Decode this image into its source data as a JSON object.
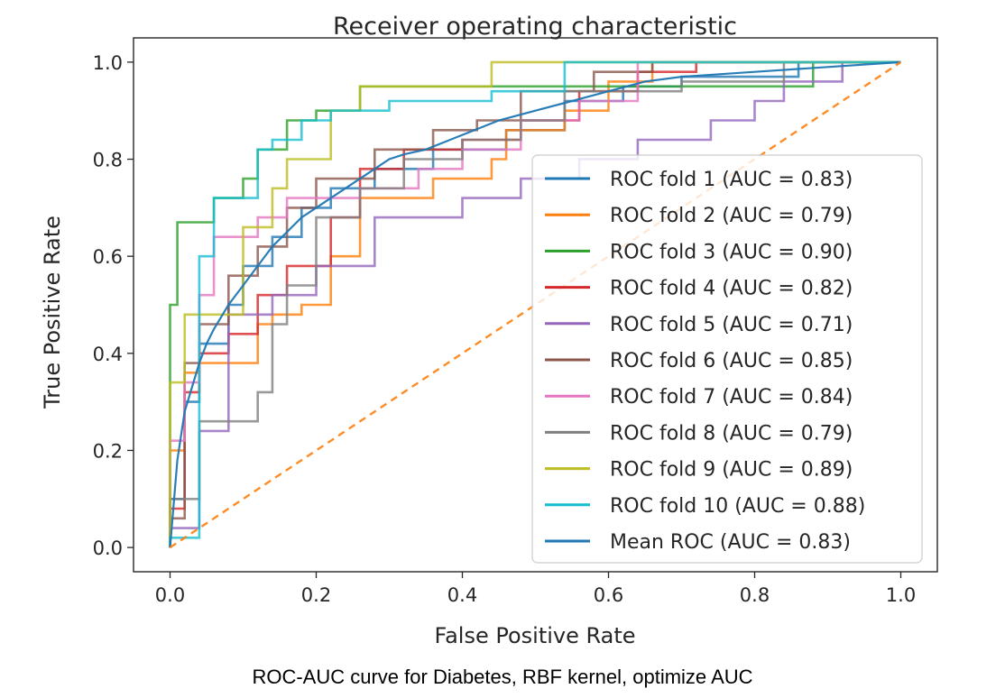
{
  "caption": "ROC-AUC curve for Diabetes, RBF kernel, optimize AUC",
  "chart_data": {
    "type": "line",
    "title": "Receiver operating characteristic",
    "xlabel": "False Positive Rate",
    "ylabel": "True Positive Rate",
    "xlim": [
      -0.05,
      1.05
    ],
    "ylim": [
      -0.05,
      1.05
    ],
    "xticks": [
      0.0,
      0.2,
      0.4,
      0.6,
      0.8,
      1.0
    ],
    "yticks": [
      0.0,
      0.2,
      0.4,
      0.6,
      0.8,
      1.0
    ],
    "tick_labels": [
      "0.0",
      "0.2",
      "0.4",
      "0.6",
      "0.8",
      "1.0"
    ],
    "grid": false,
    "legend_position": "lower-right",
    "chance_line": {
      "x": [
        0,
        1
      ],
      "y": [
        0,
        1
      ],
      "color": "#ff7f0e",
      "style": "dashed"
    },
    "series": [
      {
        "name": "ROC fold 1 (AUC = 0.83)",
        "color": "#1f77b4",
        "x": [
          0,
          0,
          0.02,
          0.02,
          0.04,
          0.04,
          0.08,
          0.08,
          0.1,
          0.1,
          0.14,
          0.14,
          0.18,
          0.18,
          0.22,
          0.22,
          0.28,
          0.28,
          0.36,
          0.36,
          0.46,
          0.46,
          0.54,
          0.54,
          0.62,
          0.62,
          0.7,
          0.7,
          0.86,
          0.86,
          1.0
        ],
        "y": [
          0,
          0.1,
          0.1,
          0.3,
          0.3,
          0.42,
          0.42,
          0.5,
          0.5,
          0.58,
          0.58,
          0.64,
          0.64,
          0.7,
          0.7,
          0.74,
          0.74,
          0.78,
          0.78,
          0.82,
          0.82,
          0.86,
          0.86,
          0.92,
          0.92,
          0.95,
          0.95,
          0.97,
          0.97,
          1.0,
          1.0
        ]
      },
      {
        "name": "ROC fold 2 (AUC = 0.79)",
        "color": "#ff7f0e",
        "x": [
          0,
          0,
          0.02,
          0.02,
          0.04,
          0.04,
          0.12,
          0.12,
          0.14,
          0.14,
          0.18,
          0.18,
          0.22,
          0.22,
          0.26,
          0.26,
          0.36,
          0.36,
          0.44,
          0.44,
          0.46,
          0.46,
          0.54,
          0.54,
          0.6,
          0.6,
          0.66,
          0.66,
          1.0
        ],
        "y": [
          0,
          0.2,
          0.2,
          0.36,
          0.36,
          0.38,
          0.38,
          0.46,
          0.46,
          0.48,
          0.48,
          0.5,
          0.5,
          0.6,
          0.6,
          0.72,
          0.72,
          0.76,
          0.76,
          0.8,
          0.8,
          0.86,
          0.86,
          0.9,
          0.9,
          0.96,
          0.96,
          1.0,
          1.0
        ]
      },
      {
        "name": "ROC fold 3 (AUC = 0.90)",
        "color": "#2ca02c",
        "x": [
          0,
          0,
          0.01,
          0.01,
          0.02,
          0.02,
          0.06,
          0.06,
          0.1,
          0.1,
          0.12,
          0.12,
          0.16,
          0.16,
          0.2,
          0.2,
          0.26,
          0.26,
          0.88,
          0.88,
          1.0
        ],
        "y": [
          0,
          0.5,
          0.5,
          0.67,
          0.67,
          0.67,
          0.67,
          0.72,
          0.72,
          0.76,
          0.76,
          0.82,
          0.82,
          0.88,
          0.88,
          0.9,
          0.9,
          0.95,
          0.95,
          1.0,
          1.0
        ]
      },
      {
        "name": "ROC fold 4 (AUC = 0.82)",
        "color": "#d62728",
        "x": [
          0,
          0,
          0.02,
          0.02,
          0.04,
          0.04,
          0.08,
          0.08,
          0.12,
          0.12,
          0.16,
          0.16,
          0.22,
          0.22,
          0.26,
          0.26,
          0.32,
          0.32,
          0.4,
          0.4,
          0.48,
          0.48,
          0.56,
          0.56,
          0.64,
          0.64,
          0.72,
          0.72,
          1.0
        ],
        "y": [
          0,
          0.08,
          0.08,
          0.32,
          0.32,
          0.4,
          0.4,
          0.44,
          0.44,
          0.52,
          0.52,
          0.58,
          0.58,
          0.68,
          0.68,
          0.78,
          0.78,
          0.82,
          0.82,
          0.84,
          0.84,
          0.88,
          0.88,
          0.94,
          0.94,
          0.98,
          0.98,
          1.0,
          1.0
        ]
      },
      {
        "name": "ROC fold 5 (AUC = 0.71)",
        "color": "#9467bd",
        "x": [
          0,
          0,
          0.04,
          0.04,
          0.08,
          0.08,
          0.14,
          0.14,
          0.2,
          0.2,
          0.28,
          0.28,
          0.4,
          0.4,
          0.48,
          0.48,
          0.56,
          0.56,
          0.64,
          0.64,
          0.74,
          0.74,
          0.8,
          0.8,
          0.84,
          0.84,
          0.92,
          0.92,
          1.0
        ],
        "y": [
          0,
          0.04,
          0.04,
          0.24,
          0.24,
          0.48,
          0.48,
          0.52,
          0.52,
          0.58,
          0.58,
          0.68,
          0.68,
          0.72,
          0.72,
          0.76,
          0.76,
          0.8,
          0.8,
          0.84,
          0.84,
          0.88,
          0.88,
          0.92,
          0.92,
          0.96,
          0.96,
          1.0,
          1.0
        ]
      },
      {
        "name": "ROC fold 6 (AUC = 0.85)",
        "color": "#8c564b",
        "x": [
          0,
          0,
          0.02,
          0.02,
          0.04,
          0.04,
          0.08,
          0.08,
          0.12,
          0.12,
          0.16,
          0.16,
          0.2,
          0.2,
          0.28,
          0.28,
          0.36,
          0.36,
          0.42,
          0.42,
          0.48,
          0.48,
          0.58,
          0.58,
          0.66,
          0.66,
          1.0
        ],
        "y": [
          0,
          0.06,
          0.06,
          0.38,
          0.38,
          0.46,
          0.46,
          0.56,
          0.56,
          0.62,
          0.62,
          0.7,
          0.7,
          0.76,
          0.76,
          0.82,
          0.82,
          0.86,
          0.86,
          0.88,
          0.88,
          0.94,
          0.94,
          0.98,
          0.98,
          1.0,
          1.0
        ]
      },
      {
        "name": "ROC fold 7 (AUC = 0.84)",
        "color": "#e377c2",
        "x": [
          0,
          0,
          0.02,
          0.02,
          0.04,
          0.04,
          0.06,
          0.06,
          0.12,
          0.12,
          0.16,
          0.16,
          0.26,
          0.26,
          0.34,
          0.34,
          0.4,
          0.4,
          0.48,
          0.48,
          0.56,
          0.56,
          0.64,
          0.64,
          1.0
        ],
        "y": [
          0,
          0.22,
          0.22,
          0.34,
          0.34,
          0.52,
          0.52,
          0.64,
          0.64,
          0.68,
          0.68,
          0.72,
          0.72,
          0.74,
          0.74,
          0.78,
          0.78,
          0.82,
          0.82,
          0.88,
          0.88,
          0.92,
          0.92,
          1.0,
          1.0
        ]
      },
      {
        "name": "ROC fold 8 (AUC = 0.79)",
        "color": "#7f7f7f",
        "x": [
          0,
          0,
          0.04,
          0.04,
          0.12,
          0.12,
          0.14,
          0.14,
          0.16,
          0.16,
          0.2,
          0.2,
          0.26,
          0.26,
          0.32,
          0.32,
          0.4,
          0.4,
          0.48,
          0.48,
          0.54,
          0.54,
          0.7,
          0.7,
          0.84,
          0.84,
          1.0
        ],
        "y": [
          0,
          0.1,
          0.1,
          0.26,
          0.26,
          0.32,
          0.32,
          0.46,
          0.46,
          0.54,
          0.54,
          0.68,
          0.68,
          0.74,
          0.74,
          0.8,
          0.8,
          0.84,
          0.84,
          0.88,
          0.88,
          0.94,
          0.94,
          0.96,
          0.96,
          1.0,
          1.0
        ]
      },
      {
        "name": "ROC fold 9 (AUC = 0.89)",
        "color": "#bcbd22",
        "x": [
          0,
          0,
          0.02,
          0.02,
          0.1,
          0.1,
          0.14,
          0.14,
          0.16,
          0.16,
          0.22,
          0.22,
          0.26,
          0.26,
          0.42,
          0.42,
          0.44,
          0.44,
          1.0
        ],
        "y": [
          0,
          0.34,
          0.34,
          0.48,
          0.48,
          0.66,
          0.66,
          0.74,
          0.74,
          0.8,
          0.8,
          0.9,
          0.9,
          0.95,
          0.95,
          0.95,
          0.95,
          1.0,
          1.0
        ]
      },
      {
        "name": "ROC fold 10 (AUC = 0.88)",
        "color": "#17becf",
        "x": [
          0,
          0,
          0.04,
          0.04,
          0.06,
          0.06,
          0.08,
          0.08,
          0.12,
          0.12,
          0.14,
          0.14,
          0.18,
          0.18,
          0.22,
          0.22,
          0.3,
          0.3,
          0.44,
          0.44,
          0.54,
          0.54,
          1.0
        ],
        "y": [
          0,
          0.02,
          0.02,
          0.6,
          0.6,
          0.72,
          0.72,
          0.72,
          0.72,
          0.82,
          0.82,
          0.84,
          0.84,
          0.88,
          0.88,
          0.9,
          0.9,
          0.92,
          0.92,
          0.94,
          0.94,
          1.0,
          1.0
        ]
      },
      {
        "name": "Mean ROC (AUC = 0.83)",
        "color": "#1f77b4",
        "mean": true,
        "x": [
          0,
          0.01,
          0.02,
          0.03,
          0.04,
          0.05,
          0.06,
          0.08,
          0.1,
          0.12,
          0.14,
          0.16,
          0.18,
          0.2,
          0.22,
          0.24,
          0.26,
          0.28,
          0.3,
          0.32,
          0.35,
          0.4,
          0.45,
          0.5,
          0.55,
          0.6,
          0.65,
          0.7,
          0.8,
          0.9,
          1.0
        ],
        "y": [
          0,
          0.18,
          0.28,
          0.33,
          0.38,
          0.42,
          0.45,
          0.5,
          0.54,
          0.58,
          0.62,
          0.65,
          0.68,
          0.7,
          0.72,
          0.74,
          0.76,
          0.78,
          0.8,
          0.81,
          0.82,
          0.85,
          0.88,
          0.9,
          0.92,
          0.94,
          0.96,
          0.97,
          0.98,
          0.99,
          1.0
        ]
      }
    ]
  }
}
